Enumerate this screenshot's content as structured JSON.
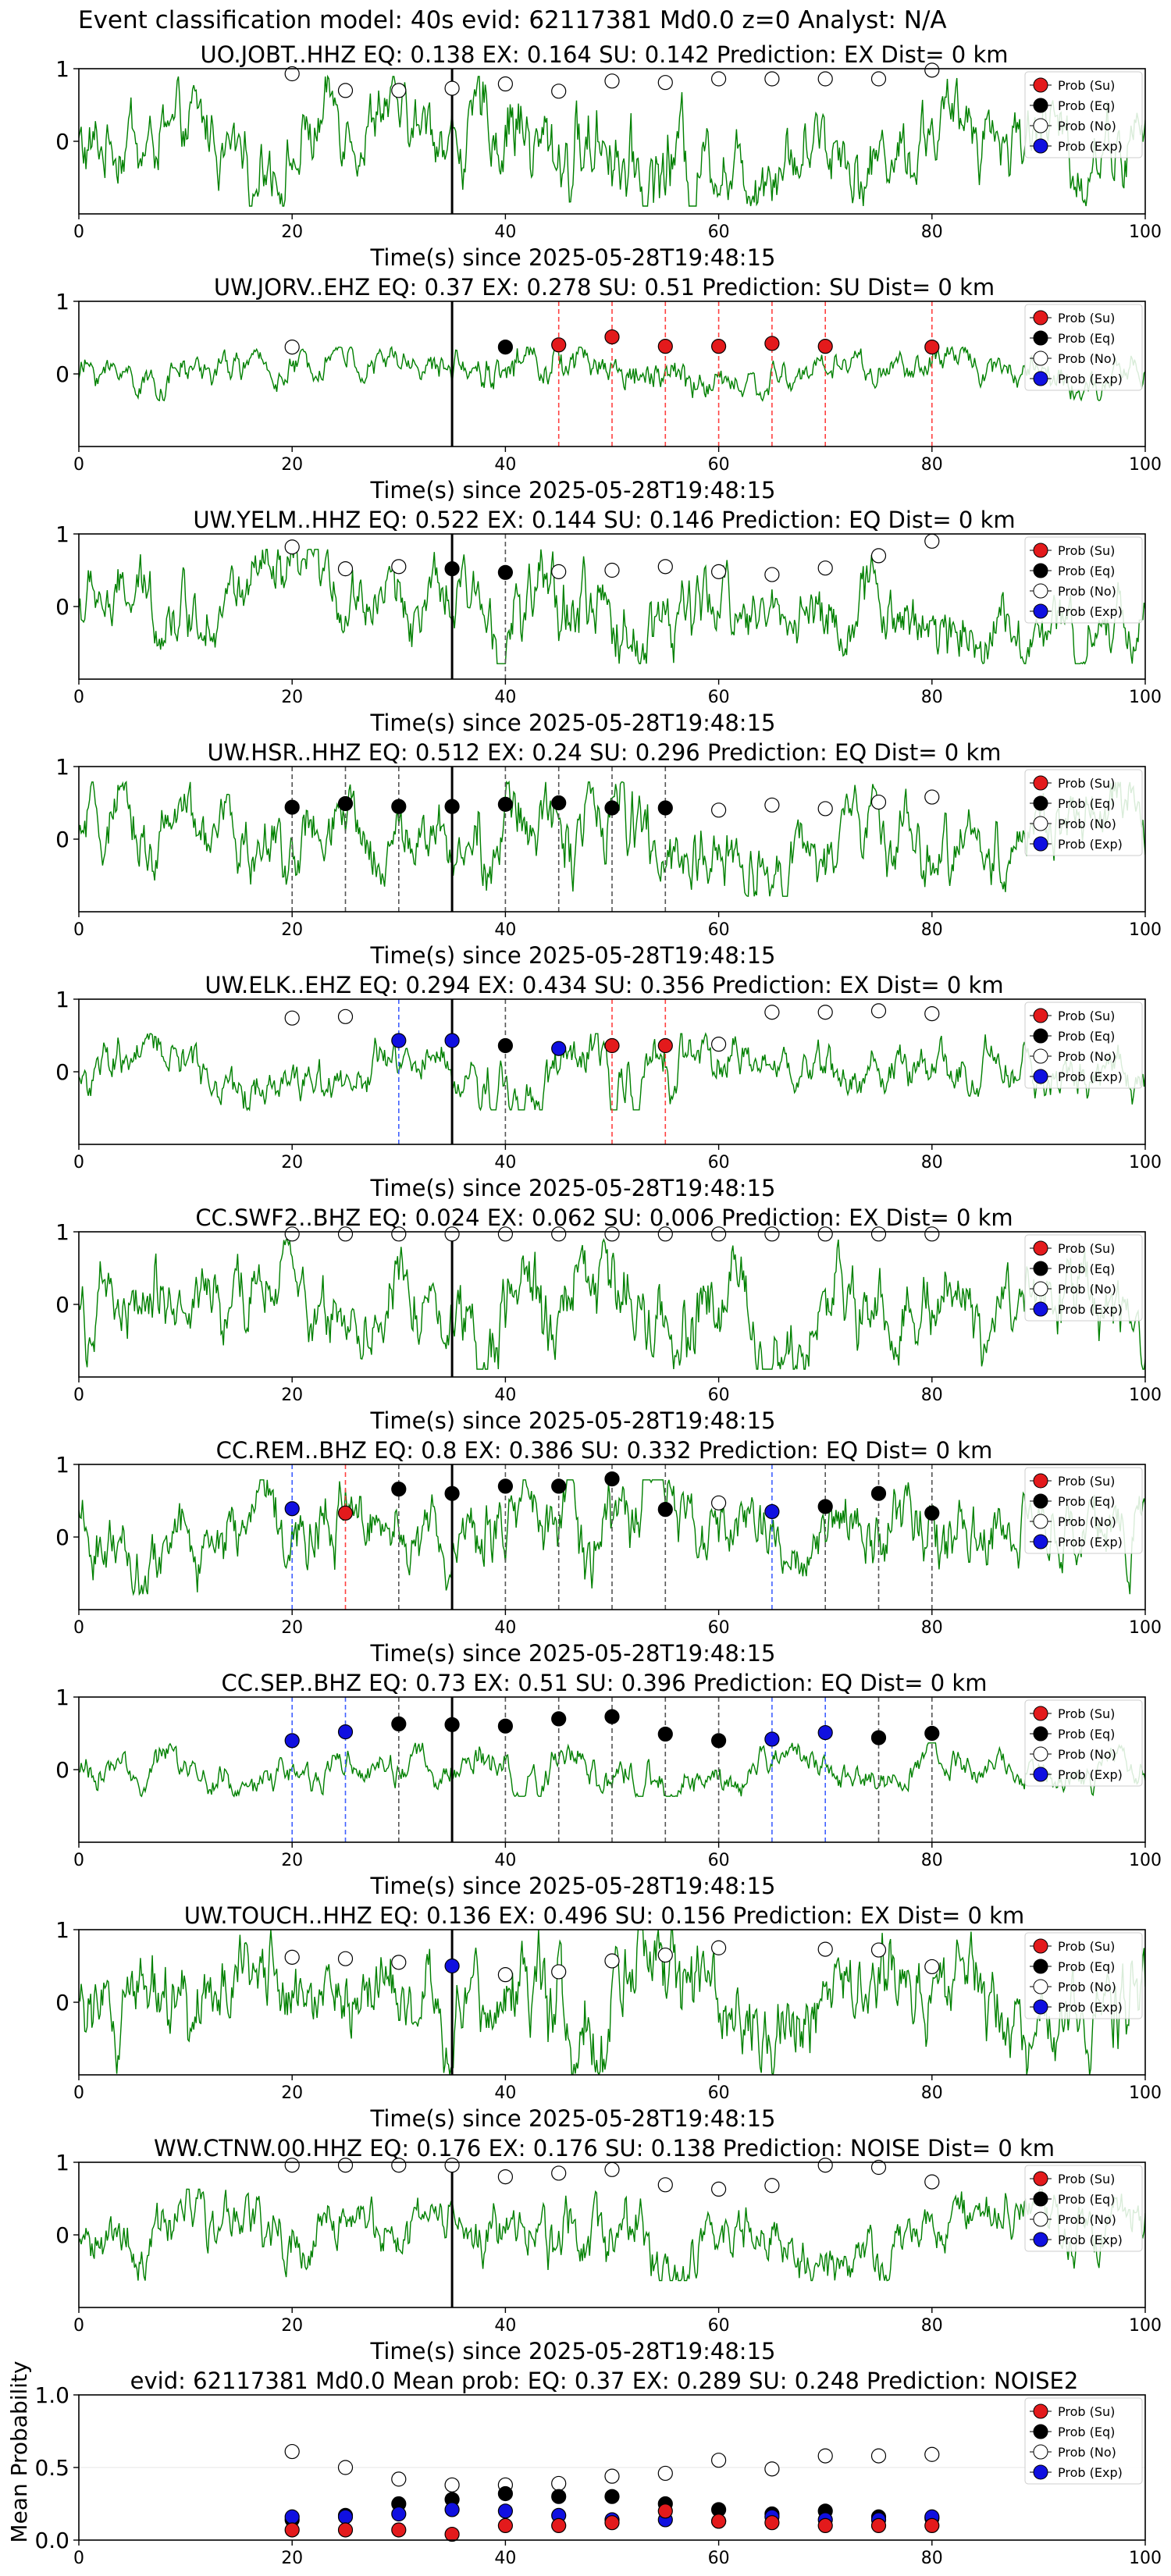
{
  "figure": {
    "supertitle": "Event classification model: 40s evid: 62117381 Md0.0 z=0 Analyst: N/A",
    "legend": [
      "Prob (Su)",
      "Prob (Eq)",
      "Prob (No)",
      "Prob (Exp)"
    ],
    "colors": {
      "waveform": "#008000",
      "su": "#e31a1c",
      "eq": "#000000",
      "no": "#ffffff",
      "exp": "#1010e0",
      "origin_line": "#000000"
    }
  },
  "chart_data": [
    {
      "type": "line",
      "title": "UO.JOBT..HHZ   EQ: 0.138  EX: 0.164  SU: 0.142   Prediction: EX    Dist= 0 km",
      "xlabel": "Time(s) since 2025-05-28T19:48:15",
      "xlim": [
        0,
        100
      ],
      "ylim": [
        -1,
        1
      ],
      "xticks": [
        0,
        20,
        40,
        60,
        80,
        100
      ],
      "yticks": [
        0,
        1
      ],
      "origin_time": 35,
      "waveform_scale": 0.85,
      "points": {
        "no": [
          [
            20,
            0.93
          ],
          [
            25,
            0.7
          ],
          [
            30,
            0.7
          ],
          [
            35,
            0.73
          ],
          [
            40,
            0.79
          ],
          [
            45,
            0.69
          ],
          [
            50,
            0.83
          ],
          [
            55,
            0.81
          ],
          [
            60,
            0.86
          ],
          [
            65,
            0.86
          ],
          [
            70,
            0.86
          ],
          [
            75,
            0.86
          ],
          [
            80,
            0.98
          ]
        ],
        "eq": [],
        "su": [],
        "exp": []
      },
      "dashed": []
    },
    {
      "type": "line",
      "title": "UW.JORV..EHZ   EQ: 0.37  EX: 0.278  SU: 0.51   Prediction: SU    Dist= 0 km",
      "xlabel": "Time(s) since 2025-05-28T19:48:15",
      "xlim": [
        0,
        100
      ],
      "ylim": [
        -1,
        1
      ],
      "xticks": [
        0,
        20,
        40,
        60,
        80,
        100
      ],
      "yticks": [
        0,
        1
      ],
      "origin_time": 35,
      "waveform_scale": 0.35,
      "points": {
        "no": [
          [
            20,
            0.37
          ]
        ],
        "eq": [
          [
            40,
            0.37
          ]
        ],
        "su": [
          [
            45,
            0.4
          ],
          [
            50,
            0.51
          ],
          [
            55,
            0.38
          ],
          [
            60,
            0.38
          ],
          [
            65,
            0.42
          ],
          [
            70,
            0.38
          ],
          [
            80,
            0.37
          ]
        ],
        "exp": []
      },
      "dashed": [
        [
          45,
          "su"
        ],
        [
          50,
          "su"
        ],
        [
          55,
          "su"
        ],
        [
          60,
          "su"
        ],
        [
          65,
          "su"
        ],
        [
          70,
          "su"
        ],
        [
          80,
          "su"
        ]
      ]
    },
    {
      "type": "line",
      "title": "UW.YELM..HHZ   EQ: 0.522  EX: 0.144  SU: 0.146   Prediction: EQ    Dist= 0 km",
      "xlabel": "Time(s) since 2025-05-28T19:48:15",
      "xlim": [
        0,
        100
      ],
      "ylim": [
        -1,
        1
      ],
      "xticks": [
        0,
        20,
        40,
        60,
        80,
        100
      ],
      "yticks": [
        0,
        1
      ],
      "origin_time": 35,
      "waveform_scale": 0.75,
      "points": {
        "no": [
          [
            20,
            0.82
          ],
          [
            25,
            0.52
          ],
          [
            30,
            0.55
          ],
          [
            45,
            0.48
          ],
          [
            50,
            0.5
          ],
          [
            55,
            0.55
          ],
          [
            60,
            0.48
          ],
          [
            65,
            0.44
          ],
          [
            70,
            0.53
          ],
          [
            75,
            0.7
          ],
          [
            80,
            0.9
          ]
        ],
        "eq": [
          [
            35,
            0.52
          ],
          [
            40,
            0.47
          ]
        ],
        "su": [],
        "exp": []
      },
      "dashed": [
        [
          40,
          "eq"
        ]
      ]
    },
    {
      "type": "line",
      "title": "UW.HSR..HHZ   EQ: 0.512  EX: 0.24  SU: 0.296   Prediction: EQ    Dist= 0 km",
      "xlabel": "Time(s) since 2025-05-28T19:48:15",
      "xlim": [
        0,
        100
      ],
      "ylim": [
        -1,
        1
      ],
      "xticks": [
        0,
        20,
        40,
        60,
        80,
        100
      ],
      "yticks": [
        0,
        1
      ],
      "origin_time": 35,
      "waveform_scale": 0.75,
      "points": {
        "no": [
          [
            60,
            0.4
          ],
          [
            65,
            0.47
          ],
          [
            70,
            0.42
          ],
          [
            75,
            0.51
          ],
          [
            80,
            0.58
          ]
        ],
        "eq": [
          [
            20,
            0.44
          ],
          [
            25,
            0.49
          ],
          [
            30,
            0.45
          ],
          [
            35,
            0.45
          ],
          [
            40,
            0.48
          ],
          [
            45,
            0.5
          ],
          [
            50,
            0.43
          ],
          [
            55,
            0.43
          ]
        ],
        "su": [],
        "exp": []
      },
      "dashed": [
        [
          20,
          "eq"
        ],
        [
          25,
          "eq"
        ],
        [
          30,
          "eq"
        ],
        [
          40,
          "eq"
        ],
        [
          45,
          "eq"
        ],
        [
          50,
          "eq"
        ],
        [
          55,
          "eq"
        ]
      ]
    },
    {
      "type": "line",
      "title": "UW.ELK..EHZ   EQ: 0.294  EX: 0.434  SU: 0.356   Prediction: EX    Dist= 0 km",
      "xlabel": "Time(s) since 2025-05-28T19:48:15",
      "xlim": [
        0,
        100
      ],
      "ylim": [
        -1,
        1
      ],
      "xticks": [
        0,
        20,
        40,
        60,
        80,
        100
      ],
      "yticks": [
        0,
        1
      ],
      "origin_time": 35,
      "waveform_scale": 0.5,
      "points": {
        "no": [
          [
            20,
            0.74
          ],
          [
            25,
            0.76
          ],
          [
            60,
            0.38
          ],
          [
            65,
            0.82
          ],
          [
            70,
            0.82
          ],
          [
            75,
            0.84
          ],
          [
            80,
            0.8
          ]
        ],
        "eq": [
          [
            40,
            0.36
          ]
        ],
        "su": [
          [
            50,
            0.36
          ],
          [
            55,
            0.36
          ]
        ],
        "exp": [
          [
            30,
            0.43
          ],
          [
            35,
            0.43
          ],
          [
            45,
            0.32
          ]
        ]
      },
      "dashed": [
        [
          30,
          "exp"
        ],
        [
          40,
          "eq"
        ],
        [
          50,
          "su"
        ],
        [
          55,
          "su"
        ]
      ]
    },
    {
      "type": "line",
      "title": "CC.SWF2..BHZ   EQ: 0.024  EX: 0.062  SU: 0.006   Prediction: EX    Dist= 0 km",
      "xlabel": "Time(s) since 2025-05-28T19:48:15",
      "xlim": [
        0,
        100
      ],
      "ylim": [
        -1,
        1
      ],
      "xticks": [
        0,
        20,
        40,
        60,
        80,
        100
      ],
      "yticks": [
        0,
        1
      ],
      "origin_time": 35,
      "waveform_scale": 0.85,
      "points": {
        "no": [
          [
            20,
            0.97
          ],
          [
            25,
            0.97
          ],
          [
            30,
            0.97
          ],
          [
            35,
            0.97
          ],
          [
            40,
            0.97
          ],
          [
            45,
            0.97
          ],
          [
            50,
            0.97
          ],
          [
            55,
            0.97
          ],
          [
            60,
            0.97
          ],
          [
            65,
            0.97
          ],
          [
            70,
            0.97
          ],
          [
            75,
            0.97
          ],
          [
            80,
            0.97
          ]
        ],
        "eq": [],
        "su": [],
        "exp": []
      },
      "dashed": []
    },
    {
      "type": "line",
      "title": "CC.REM..BHZ   EQ: 0.8  EX: 0.386  SU: 0.332   Prediction: EQ    Dist= 0 km",
      "xlabel": "Time(s) since 2025-05-28T19:48:15",
      "xlim": [
        0,
        100
      ],
      "ylim": [
        -1,
        1
      ],
      "xticks": [
        0,
        20,
        40,
        60,
        80,
        100
      ],
      "yticks": [
        0,
        1
      ],
      "origin_time": 35,
      "waveform_scale": 0.75,
      "points": {
        "no": [
          [
            60,
            0.47
          ]
        ],
        "eq": [
          [
            30,
            0.66
          ],
          [
            35,
            0.6
          ],
          [
            40,
            0.7
          ],
          [
            45,
            0.7
          ],
          [
            50,
            0.8
          ],
          [
            55,
            0.38
          ],
          [
            70,
            0.42
          ],
          [
            75,
            0.6
          ],
          [
            80,
            0.33
          ]
        ],
        "su": [
          [
            25,
            0.33
          ]
        ],
        "exp": [
          [
            20,
            0.39
          ],
          [
            65,
            0.35
          ]
        ]
      },
      "dashed": [
        [
          20,
          "exp"
        ],
        [
          25,
          "su"
        ],
        [
          30,
          "eq"
        ],
        [
          40,
          "eq"
        ],
        [
          45,
          "eq"
        ],
        [
          50,
          "eq"
        ],
        [
          55,
          "eq"
        ],
        [
          65,
          "exp"
        ],
        [
          70,
          "eq"
        ],
        [
          75,
          "eq"
        ],
        [
          80,
          "eq"
        ]
      ]
    },
    {
      "type": "line",
      "title": "CC.SEP..BHZ   EQ: 0.73  EX: 0.51  SU: 0.396   Prediction: EQ    Dist= 0 km",
      "xlabel": "Time(s) since 2025-05-28T19:48:15",
      "xlim": [
        0,
        100
      ],
      "ylim": [
        -1,
        1
      ],
      "xticks": [
        0,
        20,
        40,
        60,
        80,
        100
      ],
      "yticks": [
        0,
        1
      ],
      "origin_time": 35,
      "waveform_scale": 0.35,
      "points": {
        "no": [],
        "eq": [
          [
            30,
            0.63
          ],
          [
            35,
            0.62
          ],
          [
            40,
            0.6
          ],
          [
            45,
            0.7
          ],
          [
            50,
            0.73
          ],
          [
            55,
            0.49
          ],
          [
            60,
            0.4
          ],
          [
            75,
            0.44
          ],
          [
            80,
            0.5
          ]
        ],
        "su": [],
        "exp": [
          [
            20,
            0.4
          ],
          [
            25,
            0.52
          ],
          [
            65,
            0.42
          ],
          [
            70,
            0.51
          ]
        ]
      },
      "dashed": [
        [
          20,
          "exp"
        ],
        [
          25,
          "exp"
        ],
        [
          30,
          "eq"
        ],
        [
          40,
          "eq"
        ],
        [
          45,
          "eq"
        ],
        [
          50,
          "eq"
        ],
        [
          55,
          "eq"
        ],
        [
          60,
          "eq"
        ],
        [
          65,
          "exp"
        ],
        [
          70,
          "exp"
        ],
        [
          75,
          "eq"
        ],
        [
          80,
          "eq"
        ]
      ]
    },
    {
      "type": "line",
      "title": "UW.TOUCH..HHZ   EQ: 0.136  EX: 0.496  SU: 0.156   Prediction: EX    Dist= 0 km",
      "xlabel": "Time(s) since 2025-05-28T19:48:15",
      "xlim": [
        0,
        100
      ],
      "ylim": [
        -1,
        1
      ],
      "xticks": [
        0,
        20,
        40,
        60,
        80,
        100
      ],
      "yticks": [
        0,
        1
      ],
      "origin_time": 35,
      "waveform_scale": 0.95,
      "points": {
        "no": [
          [
            20,
            0.62
          ],
          [
            25,
            0.6
          ],
          [
            30,
            0.55
          ],
          [
            40,
            0.38
          ],
          [
            45,
            0.42
          ],
          [
            50,
            0.57
          ],
          [
            55,
            0.65
          ],
          [
            60,
            0.75
          ],
          [
            70,
            0.73
          ],
          [
            75,
            0.72
          ],
          [
            80,
            0.49
          ]
        ],
        "eq": [],
        "su": [],
        "exp": [
          [
            35,
            0.5
          ]
        ]
      },
      "dashed": []
    },
    {
      "type": "line",
      "title": "WW.CTNW.00.HHZ   EQ: 0.176  EX: 0.176  SU: 0.138   Prediction: NOISE    Dist= 0 km",
      "xlabel": "Time(s) since 2025-05-28T19:48:15",
      "xlim": [
        0,
        100
      ],
      "ylim": [
        -1,
        1
      ],
      "xticks": [
        0,
        20,
        40,
        60,
        80,
        100
      ],
      "yticks": [
        0,
        1
      ],
      "origin_time": 35,
      "waveform_scale": 0.6,
      "points": {
        "no": [
          [
            20,
            0.96
          ],
          [
            25,
            0.96
          ],
          [
            30,
            0.96
          ],
          [
            35,
            0.96
          ],
          [
            40,
            0.8
          ],
          [
            45,
            0.85
          ],
          [
            50,
            0.9
          ],
          [
            55,
            0.69
          ],
          [
            60,
            0.63
          ],
          [
            65,
            0.68
          ],
          [
            70,
            0.96
          ],
          [
            75,
            0.93
          ],
          [
            80,
            0.73
          ]
        ],
        "eq": [],
        "su": [],
        "exp": []
      },
      "dashed": []
    },
    {
      "type": "scatter",
      "title": "evid: 62117381  Md0.0   Mean prob:   EQ: 0.37  EX: 0.289  SU: 0.248   Prediction: NOISE2",
      "ylabel": "Mean Probability",
      "xlim": [
        0,
        100
      ],
      "ylim": [
        0,
        1
      ],
      "xticks": [
        0,
        20,
        40,
        60,
        80,
        100
      ],
      "yticks": [
        0.0,
        0.5,
        1.0
      ],
      "ytick_labels": [
        "0.0",
        "0.5",
        "1.0"
      ],
      "points": {
        "no": [
          [
            20,
            0.61
          ],
          [
            25,
            0.5
          ],
          [
            30,
            0.42
          ],
          [
            35,
            0.38
          ],
          [
            40,
            0.38
          ],
          [
            45,
            0.39
          ],
          [
            50,
            0.44
          ],
          [
            55,
            0.46
          ],
          [
            60,
            0.55
          ],
          [
            65,
            0.49
          ],
          [
            70,
            0.58
          ],
          [
            75,
            0.58
          ],
          [
            80,
            0.59
          ]
        ],
        "eq": [
          [
            20,
            0.14
          ],
          [
            25,
            0.17
          ],
          [
            30,
            0.25
          ],
          [
            35,
            0.28
          ],
          [
            40,
            0.32
          ],
          [
            45,
            0.3
          ],
          [
            50,
            0.3
          ],
          [
            55,
            0.25
          ],
          [
            60,
            0.21
          ],
          [
            65,
            0.18
          ],
          [
            70,
            0.2
          ],
          [
            75,
            0.16
          ],
          [
            80,
            0.15
          ]
        ],
        "exp": [
          [
            20,
            0.16
          ],
          [
            25,
            0.16
          ],
          [
            30,
            0.18
          ],
          [
            35,
            0.21
          ],
          [
            40,
            0.2
          ],
          [
            45,
            0.17
          ],
          [
            50,
            0.14
          ],
          [
            55,
            0.14
          ],
          [
            60,
            0.13
          ],
          [
            65,
            0.16
          ],
          [
            70,
            0.14
          ],
          [
            75,
            0.14
          ],
          [
            80,
            0.16
          ]
        ],
        "su": [
          [
            20,
            0.07
          ],
          [
            25,
            0.07
          ],
          [
            30,
            0.07
          ],
          [
            35,
            0.04
          ],
          [
            40,
            0.1
          ],
          [
            45,
            0.1
          ],
          [
            50,
            0.12
          ],
          [
            55,
            0.2
          ],
          [
            60,
            0.13
          ],
          [
            65,
            0.12
          ],
          [
            70,
            0.1
          ],
          [
            75,
            0.1
          ],
          [
            80,
            0.1
          ]
        ]
      }
    }
  ]
}
